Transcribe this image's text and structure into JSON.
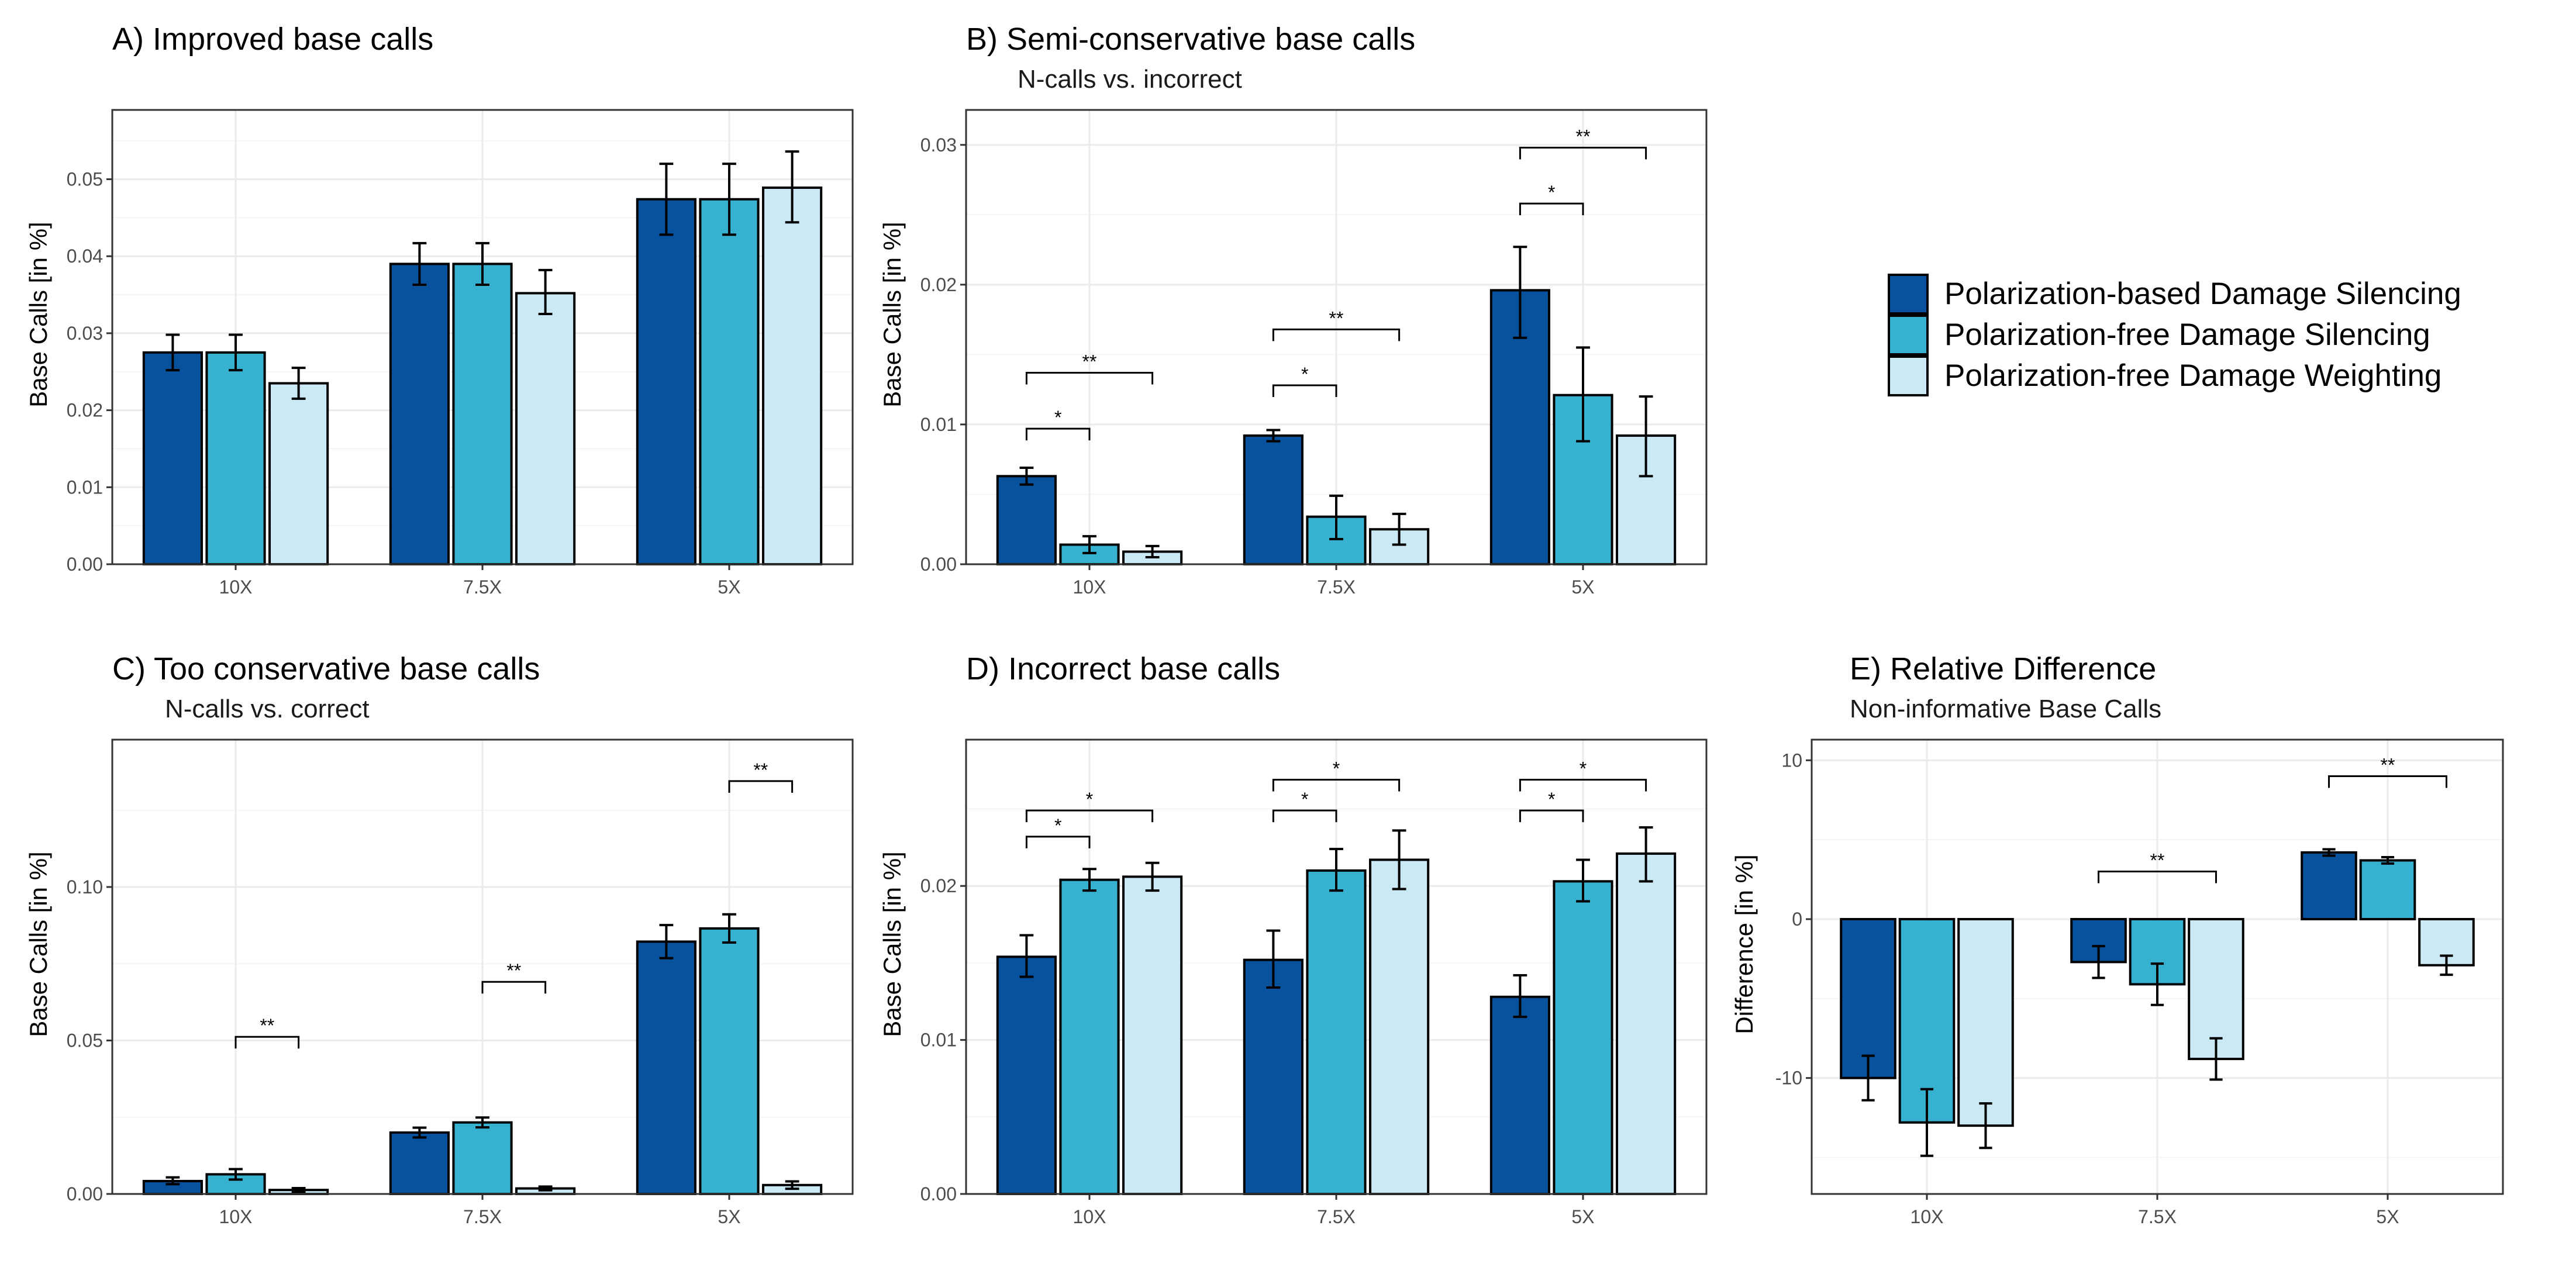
{
  "colors": {
    "series": [
      "#08519c",
      "#36b1cf",
      "#cbe8f5"
    ],
    "grid_major": "#ebebeb",
    "grid_minor": "#f5f5f5",
    "panel_border": "#333333",
    "tick_text": "#4d4d4d"
  },
  "legend": {
    "items": [
      "Polarization-based Damage Silencing",
      "Polarization-free Damage Silencing",
      "Polarization-free Damage Weighting"
    ],
    "placement": "right"
  },
  "chart_data": [
    {
      "id": "A",
      "type": "bar",
      "title": "A) Improved base calls",
      "subtitle": "",
      "xlabel": "",
      "ylabel": "Base Calls [in %]",
      "categories": [
        "10X",
        "7.5X",
        "5X"
      ],
      "ylim": [
        0,
        0.059
      ],
      "yticks": [
        0,
        0.01,
        0.02,
        0.03,
        0.04,
        0.05
      ],
      "ytick_labels": [
        "0.00",
        "0.01",
        "0.02",
        "0.03",
        "0.04",
        "0.05"
      ],
      "grid": true,
      "series": [
        {
          "name": "Polarization-based Damage Silencing",
          "values": [
            0.0275,
            0.039,
            0.0474
          ],
          "err_low": [
            0.0252,
            0.0363,
            0.0428
          ],
          "err_high": [
            0.0298,
            0.0417,
            0.052
          ]
        },
        {
          "name": "Polarization-free Damage Silencing",
          "values": [
            0.0275,
            0.039,
            0.0474
          ],
          "err_low": [
            0.0252,
            0.0363,
            0.0428
          ],
          "err_high": [
            0.0298,
            0.0417,
            0.052
          ]
        },
        {
          "name": "Polarization-free Damage Weighting",
          "values": [
            0.0235,
            0.0352,
            0.0489
          ],
          "err_low": [
            0.0215,
            0.0325,
            0.0444
          ],
          "err_high": [
            0.0255,
            0.0382,
            0.0536
          ]
        }
      ],
      "significance": []
    },
    {
      "id": "B",
      "type": "bar",
      "title": "B) Semi-conservative base calls",
      "subtitle": "N-calls vs. incorrect",
      "xlabel": "",
      "ylabel": "Base Calls [in %]",
      "categories": [
        "10X",
        "7.5X",
        "5X"
      ],
      "ylim": [
        0,
        0.0325
      ],
      "yticks": [
        0,
        0.01,
        0.02,
        0.03
      ],
      "ytick_labels": [
        "0.00",
        "0.01",
        "0.02",
        "0.03"
      ],
      "grid": true,
      "series": [
        {
          "name": "Polarization-based Damage Silencing",
          "values": [
            0.0063,
            0.0092,
            0.0196
          ],
          "err_low": [
            0.0057,
            0.0088,
            0.0162
          ],
          "err_high": [
            0.0069,
            0.0096,
            0.0227
          ]
        },
        {
          "name": "Polarization-free Damage Silencing",
          "values": [
            0.0014,
            0.0034,
            0.0121
          ],
          "err_low": [
            0.0008,
            0.0018,
            0.0088
          ],
          "err_high": [
            0.002,
            0.0049,
            0.0155
          ]
        },
        {
          "name": "Polarization-free Damage Weighting",
          "values": [
            0.0009,
            0.0025,
            0.0092
          ],
          "err_low": [
            0.0005,
            0.0014,
            0.0063
          ],
          "err_high": [
            0.0013,
            0.0036,
            0.012
          ]
        }
      ],
      "significance": [
        {
          "category": 0,
          "from": 0,
          "to": 1,
          "label": "*",
          "y": 0.0097
        },
        {
          "category": 0,
          "from": 0,
          "to": 2,
          "label": "**",
          "y": 0.0137
        },
        {
          "category": 1,
          "from": 0,
          "to": 1,
          "label": "*",
          "y": 0.0128
        },
        {
          "category": 1,
          "from": 0,
          "to": 2,
          "label": "**",
          "y": 0.0168
        },
        {
          "category": 2,
          "from": 0,
          "to": 1,
          "label": "*",
          "y": 0.0258
        },
        {
          "category": 2,
          "from": 0,
          "to": 2,
          "label": "**",
          "y": 0.0298
        }
      ]
    },
    {
      "id": "C",
      "type": "bar",
      "title": "C) Too conservative base calls",
      "subtitle": "N-calls vs. correct",
      "xlabel": "",
      "ylabel": "Base Calls [in %]",
      "categories": [
        "10X",
        "7.5X",
        "5X"
      ],
      "ylim": [
        0,
        0.148
      ],
      "yticks": [
        0,
        0.05,
        0.1
      ],
      "ytick_labels": [
        "0.00",
        "0.05",
        "0.10"
      ],
      "grid": true,
      "series": [
        {
          "name": "Polarization-based Damage Silencing",
          "values": [
            0.0042,
            0.02,
            0.0822
          ],
          "err_low": [
            0.0032,
            0.0184,
            0.0768
          ],
          "err_high": [
            0.0054,
            0.0216,
            0.0876
          ]
        },
        {
          "name": "Polarization-free Damage Silencing",
          "values": [
            0.0064,
            0.0233,
            0.0865
          ],
          "err_low": [
            0.0047,
            0.0217,
            0.0819
          ],
          "err_high": [
            0.0081,
            0.0249,
            0.0911
          ]
        },
        {
          "name": "Polarization-free Damage Weighting",
          "values": [
            0.0013,
            0.0018,
            0.0029
          ],
          "err_low": [
            0.0007,
            0.0012,
            0.0017
          ],
          "err_high": [
            0.0019,
            0.0024,
            0.0041
          ]
        }
      ],
      "significance": [
        {
          "category": 0,
          "from": 1,
          "to": 2,
          "label": "**",
          "y": 0.0512
        },
        {
          "category": 1,
          "from": 1,
          "to": 2,
          "label": "**",
          "y": 0.0691
        },
        {
          "category": 2,
          "from": 1,
          "to": 2,
          "label": "**",
          "y": 0.1345
        }
      ]
    },
    {
      "id": "D",
      "type": "bar",
      "title": "D) Incorrect base calls",
      "subtitle": "",
      "xlabel": "",
      "ylabel": "Base Calls [in %]",
      "categories": [
        "10X",
        "7.5X",
        "5X"
      ],
      "ylim": [
        0,
        0.0295
      ],
      "yticks": [
        0,
        0.01,
        0.02
      ],
      "ytick_labels": [
        "0.00",
        "0.01",
        "0.02"
      ],
      "grid": true,
      "series": [
        {
          "name": "Polarization-based Damage Silencing",
          "values": [
            0.0154,
            0.0152,
            0.0128
          ],
          "err_low": [
            0.0141,
            0.0134,
            0.0115
          ],
          "err_high": [
            0.0168,
            0.0171,
            0.0142
          ]
        },
        {
          "name": "Polarization-free Damage Silencing",
          "values": [
            0.0204,
            0.021,
            0.0203
          ],
          "err_low": [
            0.0197,
            0.0197,
            0.019
          ],
          "err_high": [
            0.0211,
            0.0224,
            0.0217
          ]
        },
        {
          "name": "Polarization-free Damage Weighting",
          "values": [
            0.0206,
            0.0217,
            0.0221
          ],
          "err_low": [
            0.0197,
            0.0198,
            0.0203
          ],
          "err_high": [
            0.0215,
            0.0236,
            0.0238
          ]
        }
      ],
      "significance": [
        {
          "category": 0,
          "from": 0,
          "to": 1,
          "label": "*",
          "y": 0.0232
        },
        {
          "category": 0,
          "from": 0,
          "to": 2,
          "label": "*",
          "y": 0.0249
        },
        {
          "category": 1,
          "from": 0,
          "to": 1,
          "label": "*",
          "y": 0.0249
        },
        {
          "category": 1,
          "from": 0,
          "to": 2,
          "label": "*",
          "y": 0.0269
        },
        {
          "category": 2,
          "from": 0,
          "to": 1,
          "label": "*",
          "y": 0.0249
        },
        {
          "category": 2,
          "from": 0,
          "to": 2,
          "label": "*",
          "y": 0.0269
        }
      ]
    },
    {
      "id": "E",
      "type": "bar",
      "title": "E) Relative Difference",
      "subtitle": "Non-informative Base Calls",
      "xlabel": "",
      "ylabel": "Difference [in %]",
      "categories": [
        "10X",
        "7.5X",
        "5X"
      ],
      "ylim": [
        -17.3,
        11.3
      ],
      "yticks": [
        -10,
        0,
        10
      ],
      "ytick_labels": [
        "-10",
        "0",
        "10"
      ],
      "grid": true,
      "series": [
        {
          "name": "Polarization-based Damage Silencing",
          "values": [
            -10.0,
            -2.7,
            4.2
          ],
          "err_low": [
            -11.4,
            -3.7,
            4.0
          ],
          "err_high": [
            -8.6,
            -1.7,
            4.4
          ]
        },
        {
          "name": "Polarization-free Damage Silencing",
          "values": [
            -12.8,
            -4.1,
            3.7
          ],
          "err_low": [
            -14.9,
            -5.4,
            3.5
          ],
          "err_high": [
            -10.7,
            -2.8,
            3.9
          ]
        },
        {
          "name": "Polarization-free Damage Weighting",
          "values": [
            -13.0,
            -8.8,
            -2.9
          ],
          "err_low": [
            -14.4,
            -10.1,
            -3.5
          ],
          "err_high": [
            -11.6,
            -7.5,
            -2.3
          ]
        }
      ],
      "significance": [
        {
          "category": 1,
          "from": 0,
          "to": 2,
          "label": "**",
          "y": 3.0
        },
        {
          "category": 2,
          "from": 0,
          "to": 2,
          "label": "**",
          "y": 9.0
        }
      ]
    }
  ]
}
